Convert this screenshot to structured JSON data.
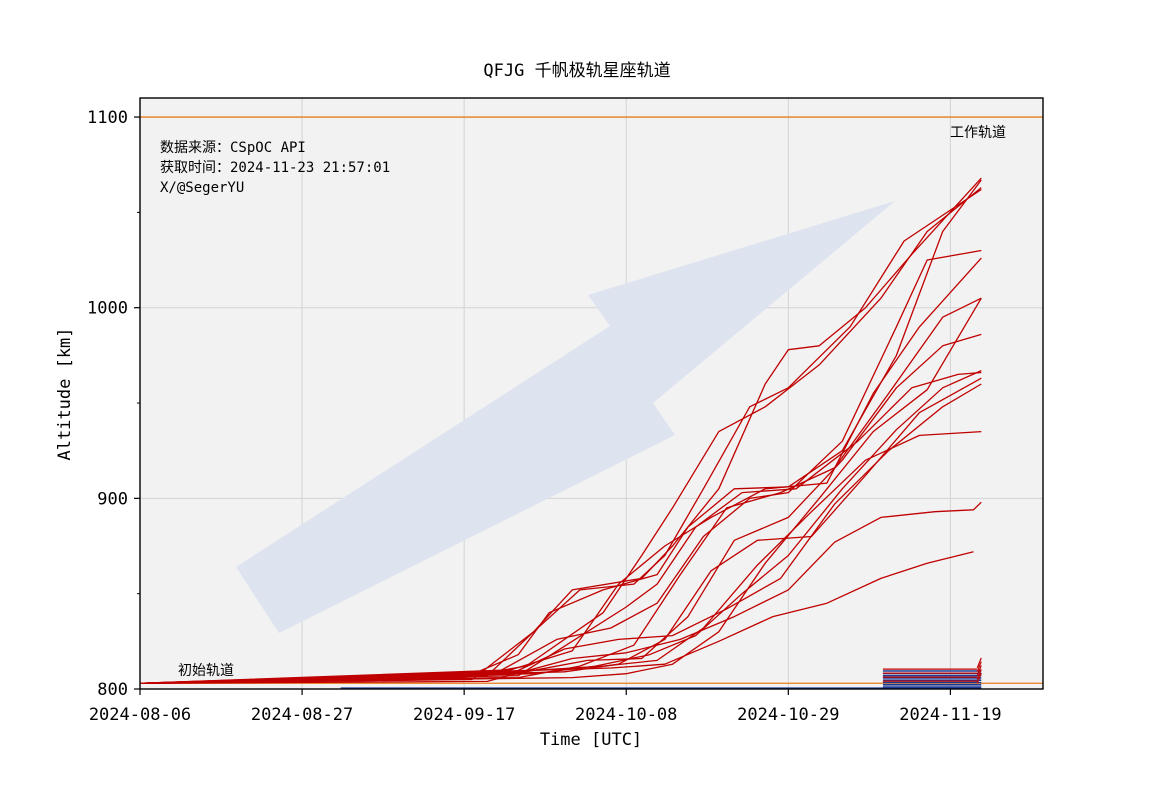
{
  "chart_data": {
    "type": "line",
    "title": "QFJG 千帆极轨星座轨道",
    "xlabel": "Time [UTC]",
    "ylabel": "Altitude [km]",
    "x_ticks": [
      "2024-08-06",
      "2024-08-27",
      "2024-09-17",
      "2024-10-08",
      "2024-10-29",
      "2024-11-19"
    ],
    "y_ticks": [
      800,
      900,
      1000,
      1100
    ],
    "ylim": [
      800,
      1110
    ],
    "xlim": [
      "2024-08-06",
      "2024-12-01"
    ],
    "grid": true,
    "annotation_lines": [
      {
        "label": "工作轨道",
        "y": 1100,
        "color": "#e87c1e"
      },
      {
        "label": "初始轨道",
        "y": 803,
        "color": "#e87c1e"
      }
    ],
    "info_text": [
      "数据来源：CSpOC API",
      "获取时间：2024-11-23 21:57:01",
      "X/@SegerYU"
    ],
    "colors": {
      "trajectory": "#c00000",
      "recent": "#1f3a93",
      "arrow": "#dde3ef",
      "background": "#f2f2f2"
    },
    "series": [
      {
        "points": [
          [
            "2024-08-06",
            803
          ],
          [
            "2024-09-17",
            806
          ],
          [
            "2024-09-24",
            818
          ],
          [
            "2024-09-28",
            840
          ],
          [
            "2024-10-05",
            852
          ],
          [
            "2024-10-12",
            860
          ],
          [
            "2024-10-16",
            885
          ],
          [
            "2024-10-22",
            905
          ],
          [
            "2024-10-29",
            906
          ],
          [
            "2024-11-05",
            925
          ],
          [
            "2024-11-12",
            975
          ],
          [
            "2024-11-18",
            1040
          ],
          [
            "2024-11-23",
            1067
          ]
        ]
      },
      {
        "points": [
          [
            "2024-08-06",
            803
          ],
          [
            "2024-09-20",
            807
          ],
          [
            "2024-09-26",
            830
          ],
          [
            "2024-10-01",
            852
          ],
          [
            "2024-10-10",
            858
          ],
          [
            "2024-10-14",
            875
          ],
          [
            "2024-10-20",
            905
          ],
          [
            "2024-10-26",
            960
          ],
          [
            "2024-10-29",
            978
          ],
          [
            "2024-11-02",
            980
          ],
          [
            "2024-11-08",
            1000
          ],
          [
            "2024-11-14",
            1028
          ],
          [
            "2024-11-23",
            1068
          ]
        ]
      },
      {
        "points": [
          [
            "2024-08-06",
            803
          ],
          [
            "2024-09-15",
            805
          ],
          [
            "2024-09-25",
            812
          ],
          [
            "2024-10-05",
            840
          ],
          [
            "2024-10-10",
            870
          ],
          [
            "2024-10-14",
            895
          ],
          [
            "2024-10-20",
            935
          ],
          [
            "2024-10-26",
            948
          ],
          [
            "2024-11-02",
            970
          ],
          [
            "2024-11-10",
            1005
          ],
          [
            "2024-11-16",
            1040
          ],
          [
            "2024-11-23",
            1063
          ]
        ]
      },
      {
        "points": [
          [
            "2024-08-06",
            803
          ],
          [
            "2024-09-21",
            808
          ],
          [
            "2024-09-29",
            826
          ],
          [
            "2024-10-06",
            832
          ],
          [
            "2024-10-12",
            845
          ],
          [
            "2024-10-18",
            880
          ],
          [
            "2024-10-24",
            900
          ],
          [
            "2024-10-29",
            903
          ],
          [
            "2024-11-05",
            930
          ],
          [
            "2024-11-12",
            990
          ],
          [
            "2024-11-16",
            1025
          ],
          [
            "2024-11-23",
            1030
          ]
        ]
      },
      {
        "points": [
          [
            "2024-08-06",
            803
          ],
          [
            "2024-09-23",
            810
          ],
          [
            "2024-10-01",
            820
          ],
          [
            "2024-10-07",
            855
          ],
          [
            "2024-10-13",
            875
          ],
          [
            "2024-10-19",
            890
          ],
          [
            "2024-10-26",
            905
          ],
          [
            "2024-11-03",
            908
          ],
          [
            "2024-11-09",
            955
          ],
          [
            "2024-11-15",
            990
          ],
          [
            "2024-11-23",
            1026
          ]
        ]
      },
      {
        "points": [
          [
            "2024-08-06",
            803
          ],
          [
            "2024-09-24",
            806
          ],
          [
            "2024-10-02",
            812
          ],
          [
            "2024-10-09",
            823
          ],
          [
            "2024-10-15",
            860
          ],
          [
            "2024-10-21",
            895
          ],
          [
            "2024-10-28",
            903
          ],
          [
            "2024-11-04",
            916
          ],
          [
            "2024-11-11",
            955
          ],
          [
            "2024-11-18",
            995
          ],
          [
            "2024-11-23",
            1005
          ]
        ]
      },
      {
        "points": [
          [
            "2024-08-06",
            803
          ],
          [
            "2024-09-25",
            809
          ],
          [
            "2024-10-03",
            815
          ],
          [
            "2024-10-10",
            816
          ],
          [
            "2024-10-16",
            838
          ],
          [
            "2024-10-22",
            878
          ],
          [
            "2024-10-29",
            890
          ],
          [
            "2024-11-05",
            920
          ],
          [
            "2024-11-12",
            958
          ],
          [
            "2024-11-18",
            980
          ],
          [
            "2024-11-23",
            986
          ]
        ]
      },
      {
        "points": [
          [
            "2024-08-06",
            803
          ],
          [
            "2024-09-26",
            808
          ],
          [
            "2024-10-04",
            812
          ],
          [
            "2024-10-11",
            818
          ],
          [
            "2024-10-17",
            828
          ],
          [
            "2024-10-23",
            850
          ],
          [
            "2024-10-29",
            870
          ],
          [
            "2024-11-05",
            905
          ],
          [
            "2024-11-12",
            936
          ],
          [
            "2024-11-18",
            958
          ],
          [
            "2024-11-23",
            967
          ]
        ]
      },
      {
        "points": [
          [
            "2024-08-06",
            803
          ],
          [
            "2024-09-22",
            806
          ],
          [
            "2024-09-30",
            821
          ],
          [
            "2024-10-07",
            826
          ],
          [
            "2024-10-14",
            828
          ],
          [
            "2024-10-21",
            842
          ],
          [
            "2024-10-28",
            858
          ],
          [
            "2024-11-04",
            897
          ],
          [
            "2024-11-11",
            925
          ],
          [
            "2024-11-18",
            948
          ],
          [
            "2024-11-23",
            960
          ]
        ]
      },
      {
        "points": [
          [
            "2024-08-06",
            803
          ],
          [
            "2024-09-27",
            810
          ],
          [
            "2024-10-05",
            812
          ],
          [
            "2024-10-12",
            815
          ],
          [
            "2024-10-18",
            832
          ],
          [
            "2024-10-25",
            865
          ],
          [
            "2024-11-01",
            893
          ],
          [
            "2024-11-08",
            920
          ],
          [
            "2024-11-15",
            933
          ],
          [
            "2024-11-23",
            935
          ]
        ]
      },
      {
        "points": [
          [
            "2024-08-06",
            803
          ],
          [
            "2024-09-20",
            804
          ],
          [
            "2024-10-01",
            816
          ],
          [
            "2024-10-08",
            819
          ],
          [
            "2024-10-15",
            826
          ],
          [
            "2024-10-22",
            838
          ],
          [
            "2024-10-29",
            852
          ],
          [
            "2024-11-04",
            877
          ],
          [
            "2024-11-10",
            890
          ],
          [
            "2024-11-17",
            893
          ],
          [
            "2024-11-22",
            894
          ],
          [
            "2024-11-23",
            898
          ]
        ]
      },
      {
        "points": [
          [
            "2024-08-06",
            803
          ],
          [
            "2024-09-28",
            810
          ],
          [
            "2024-10-06",
            811
          ],
          [
            "2024-10-13",
            813
          ],
          [
            "2024-10-20",
            825
          ],
          [
            "2024-10-27",
            838
          ],
          [
            "2024-11-03",
            845
          ],
          [
            "2024-11-10",
            858
          ],
          [
            "2024-11-16",
            866
          ],
          [
            "2024-11-22",
            872
          ]
        ]
      },
      {
        "points": [
          [
            "2024-08-06",
            803
          ],
          [
            "2024-09-18",
            805
          ],
          [
            "2024-09-26",
            830
          ],
          [
            "2024-10-02",
            852
          ],
          [
            "2024-10-09",
            855
          ],
          [
            "2024-10-13",
            870
          ],
          [
            "2024-10-18",
            905
          ],
          [
            "2024-10-24",
            948
          ],
          [
            "2024-10-29",
            958
          ],
          [
            "2024-11-06",
            990
          ],
          [
            "2024-11-13",
            1035
          ],
          [
            "2024-11-23",
            1062
          ]
        ]
      },
      {
        "points": [
          [
            "2024-08-06",
            803
          ],
          [
            "2024-09-24",
            807
          ],
          [
            "2024-10-01",
            825
          ],
          [
            "2024-10-08",
            843
          ],
          [
            "2024-10-12",
            855
          ],
          [
            "2024-10-17",
            885
          ],
          [
            "2024-10-23",
            903
          ],
          [
            "2024-10-30",
            905
          ],
          [
            "2024-11-07",
            930
          ],
          [
            "2024-11-14",
            958
          ],
          [
            "2024-11-20",
            965
          ],
          [
            "2024-11-23",
            966
          ]
        ]
      },
      {
        "points": [
          [
            "2024-08-06",
            803
          ],
          [
            "2024-09-30",
            809
          ],
          [
            "2024-10-07",
            813
          ],
          [
            "2024-10-13",
            826
          ],
          [
            "2024-10-19",
            862
          ],
          [
            "2024-10-25",
            878
          ],
          [
            "2024-11-01",
            880
          ],
          [
            "2024-11-08",
            912
          ],
          [
            "2024-11-15",
            945
          ],
          [
            "2024-11-23",
            963
          ]
        ]
      },
      {
        "points": [
          [
            "2024-08-06",
            803
          ],
          [
            "2024-10-01",
            806
          ],
          [
            "2024-10-08",
            808
          ],
          [
            "2024-10-14",
            813
          ],
          [
            "2024-10-20",
            830
          ],
          [
            "2024-10-26",
            866
          ],
          [
            "2024-11-02",
            900
          ],
          [
            "2024-11-09",
            935
          ],
          [
            "2024-11-16",
            957
          ],
          [
            "2024-11-23",
            1005
          ]
        ]
      }
    ],
    "recent_group": {
      "x_range": [
        "2024-11-10",
        "2024-11-23"
      ],
      "y_range": [
        801,
        822
      ]
    }
  }
}
